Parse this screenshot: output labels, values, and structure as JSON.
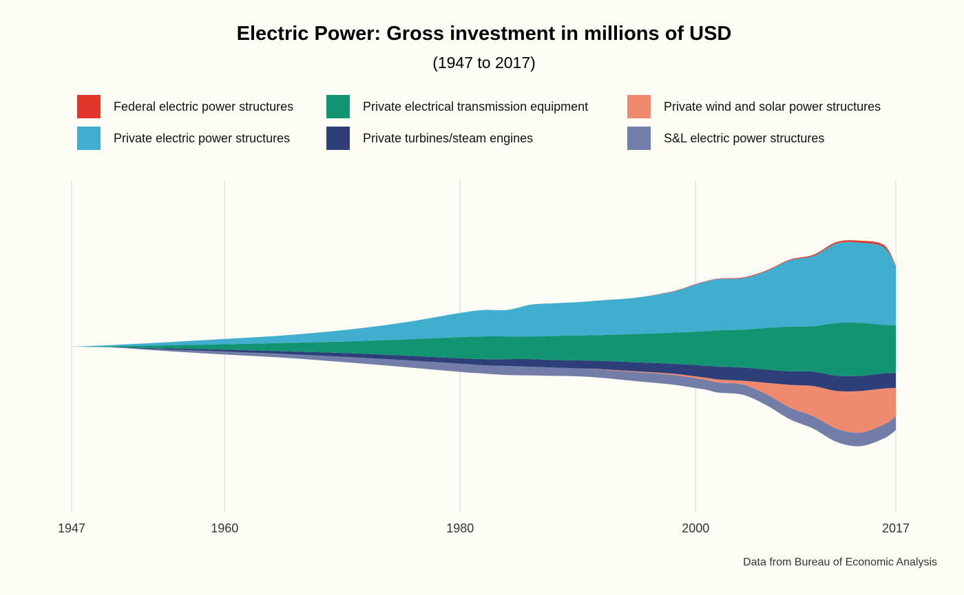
{
  "title": "Electric Power: Gross investment in millions of USD",
  "subtitle": "(1947 to 2017)",
  "caption": "Data from Bureau of Economic Analysis",
  "legend": [
    {
      "label": "Federal electric power structures",
      "color": "#e0362c"
    },
    {
      "label": "Private electrical transmission equipment",
      "color": "#129473"
    },
    {
      "label": "Private wind and solar power structures",
      "color": "#ef8a6e"
    },
    {
      "label": "Private electric power structures",
      "color": "#42aecf"
    },
    {
      "label": "Private turbines/steam engines",
      "color": "#2d3e78"
    },
    {
      "label": "S&L electric power structures",
      "color": "#737ea8"
    }
  ],
  "chart_data": {
    "type": "area",
    "subtype": "streamgraph",
    "x": [
      1947,
      1950,
      1955,
      1960,
      1965,
      1970,
      1975,
      1980,
      1982,
      1984,
      1986,
      1988,
      1990,
      1992,
      1995,
      1998,
      2000,
      2001,
      2002,
      2004,
      2006,
      2008,
      2010,
      2012,
      2014,
      2016,
      2017
    ],
    "xlim": [
      1947,
      2017
    ],
    "x_ticks": [
      1947,
      1960,
      1980,
      2000,
      2017
    ],
    "grid": "vertical major gridlines",
    "legend_position": "top",
    "series": [
      {
        "name": "S&L electric power structures",
        "color": "#737ea8",
        "values": [
          0,
          0,
          4,
          8,
          10,
          14,
          18,
          22,
          22,
          24,
          23,
          22,
          21,
          22,
          24,
          26,
          26,
          26,
          27,
          27,
          29,
          31,
          33,
          35,
          36,
          37,
          36
        ]
      },
      {
        "name": "Private wind and solar power structures",
        "color": "#ef8a6e",
        "values": [
          0,
          0,
          0,
          0,
          0,
          0,
          0,
          0,
          0,
          0,
          0,
          0,
          0,
          1,
          2,
          3,
          5,
          6,
          8,
          10,
          30,
          60,
          80,
          100,
          110,
          95,
          75
        ]
      },
      {
        "name": "Private turbines/steam engines",
        "color": "#2d3e78",
        "values": [
          0,
          0,
          3,
          5,
          7,
          10,
          12,
          14,
          16,
          18,
          20,
          20,
          21,
          22,
          24,
          26,
          30,
          32,
          34,
          35,
          35,
          36,
          38,
          40,
          40,
          40,
          40
        ]
      },
      {
        "name": "Private electrical transmission equipment",
        "color": "#129473",
        "values": [
          0,
          2,
          8,
          14,
          22,
          30,
          42,
          56,
          60,
          60,
          60,
          64,
          66,
          68,
          75,
          82,
          88,
          92,
          96,
          100,
          110,
          118,
          120,
          140,
          140,
          128,
          126
        ]
      },
      {
        "name": "Private electric power structures",
        "color": "#42aecf",
        "values": [
          0,
          3,
          8,
          14,
          20,
          30,
          44,
          64,
          70,
          70,
          84,
          86,
          88,
          92,
          96,
          108,
          125,
          132,
          136,
          136,
          150,
          175,
          186,
          210,
          212,
          205,
          154
        ]
      },
      {
        "name": "Federal electric power structures",
        "color": "#e0362c",
        "values": [
          0,
          0,
          0,
          0,
          0,
          0,
          0,
          0,
          0,
          0,
          0,
          0,
          0,
          0,
          0,
          1,
          1,
          1,
          1,
          2,
          2,
          2,
          3,
          4,
          5,
          6,
          3
        ]
      }
    ]
  }
}
